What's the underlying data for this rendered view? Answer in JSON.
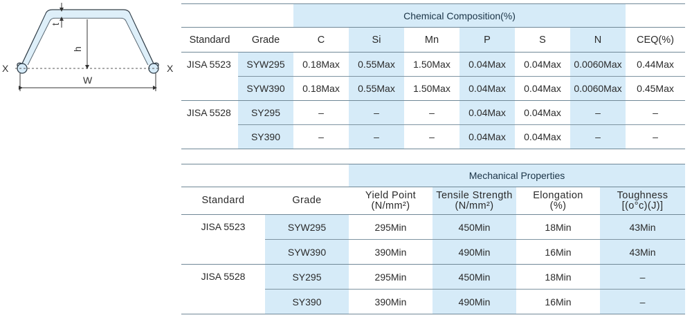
{
  "diagram": {
    "label_t": "t",
    "label_h": "h",
    "label_w": "W",
    "label_x_left": "X",
    "label_x_right": "X"
  },
  "chemical": {
    "group_title": "Chemical Composition(%)",
    "headers": [
      "Standard",
      "Grade",
      "C",
      "Si",
      "Mn",
      "P",
      "S",
      "N",
      "CEQ(%)"
    ],
    "standards": [
      "JISA 5523",
      "JISA 5528"
    ],
    "rows": [
      [
        "SYW295",
        "0.18Max",
        "0.55Max",
        "1.50Max",
        "0.04Max",
        "0.04Max",
        "0.0060Max",
        "0.44Max"
      ],
      [
        "SYW390",
        "0.18Max",
        "0.55Max",
        "1.50Max",
        "0.04Max",
        "0.04Max",
        "0.0060Max",
        "0.45Max"
      ],
      [
        "SY295",
        "–",
        "–",
        "–",
        "0.04Max",
        "0.04Max",
        "–",
        "–"
      ],
      [
        "SY390",
        "–",
        "–",
        "–",
        "0.04Max",
        "0.04Max",
        "–",
        "–"
      ]
    ]
  },
  "mechanical": {
    "group_title": "Mechanical Properties",
    "headers": {
      "standard": "Standard",
      "grade": "Grade",
      "yield_1": "Yield Point",
      "yield_2": "(N/mm²)",
      "tensile_1": "Tensile Strength",
      "tensile_2": "(N/mm²)",
      "elong_1": "Elongation",
      "elong_2": "(%)",
      "tough_1": "Toughness",
      "tough_2": "[(o°c)(J)]"
    },
    "standards": [
      "JISA 5523",
      "JISA 5528"
    ],
    "rows": [
      [
        "SYW295",
        "295Min",
        "450Min",
        "18Min",
        "43Min"
      ],
      [
        "SYW390",
        "390Min",
        "490Min",
        "16Min",
        "43Min"
      ],
      [
        "SY295",
        "295Min",
        "450Min",
        "18Min",
        "–"
      ],
      [
        "SY390",
        "390Min",
        "490Min",
        "16Min",
        "–"
      ]
    ]
  }
}
